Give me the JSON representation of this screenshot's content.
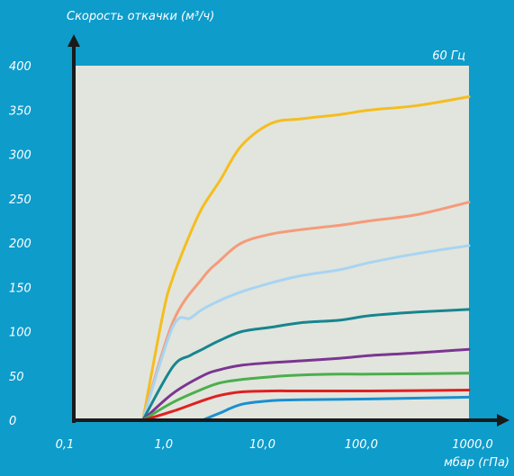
{
  "chart_data": {
    "type": "line",
    "ylabel": "Скорость откачки (м³/ч)",
    "xlabel": "мбар (гПа)",
    "annotation": "60 Гц",
    "x_scale": "log",
    "xlim": [
      0.1,
      1000
    ],
    "ylim": [
      0,
      400
    ],
    "x_ticks": [
      0.1,
      1,
      10,
      100,
      1000
    ],
    "x_tick_labels": [
      "0,1",
      "1,0",
      "10,0",
      "100,0",
      "1000,0"
    ],
    "y_ticks": [
      0,
      50,
      100,
      150,
      200,
      250,
      300,
      350,
      400
    ],
    "y_tick_labels": [
      "0",
      "50",
      "100",
      "150",
      "200",
      "250",
      "300",
      "350",
      "400"
    ],
    "series": [
      {
        "color": "#f5bd1f",
        "x": [
          0.5,
          0.8,
          1,
          1.5,
          2,
          3,
          5,
          10,
          20,
          50,
          100,
          300,
          1000
        ],
        "y": [
          0,
          120,
          160,
          210,
          240,
          270,
          310,
          335,
          340,
          345,
          350,
          355,
          365
        ]
      },
      {
        "color": "#f59b7a",
        "x": [
          0.5,
          1,
          2,
          3,
          5,
          10,
          20,
          50,
          100,
          300,
          1000
        ],
        "y": [
          0,
          110,
          160,
          180,
          200,
          210,
          215,
          220,
          225,
          232,
          246
        ]
      },
      {
        "color": "#a8d4f2",
        "x": [
          0.5,
          1,
          1.5,
          2,
          3,
          5,
          10,
          20,
          50,
          100,
          300,
          1000
        ],
        "y": [
          0,
          105,
          115,
          125,
          135,
          145,
          155,
          163,
          170,
          178,
          188,
          197
        ]
      },
      {
        "color": "#17858f",
        "x": [
          0.5,
          1,
          1.5,
          2,
          3,
          5,
          10,
          20,
          50,
          100,
          300,
          1000
        ],
        "y": [
          0,
          60,
          73,
          80,
          90,
          100,
          105,
          110,
          113,
          118,
          122,
          125
        ]
      },
      {
        "color": "#7b3591",
        "x": [
          0.5,
          1,
          2,
          3,
          5,
          10,
          20,
          50,
          100,
          300,
          1000
        ],
        "y": [
          0,
          30,
          50,
          57,
          62,
          65,
          67,
          70,
          73,
          76,
          80
        ]
      },
      {
        "color": "#4cae4c",
        "x": [
          0.5,
          1,
          2,
          3,
          5,
          10,
          20,
          50,
          100,
          1000
        ],
        "y": [
          0,
          20,
          35,
          42,
          46,
          49,
          51,
          52,
          52,
          53
        ]
      },
      {
        "color": "#e02020",
        "x": [
          0.5,
          1,
          2,
          3,
          5,
          10,
          20,
          100,
          1000
        ],
        "y": [
          0,
          10,
          22,
          28,
          32,
          33,
          33,
          33,
          34
        ]
      },
      {
        "color": "#1a8fd0",
        "x": [
          2,
          3,
          5,
          10,
          20,
          100,
          1000
        ],
        "y": [
          0,
          8,
          18,
          22,
          23,
          24,
          26
        ]
      }
    ]
  }
}
